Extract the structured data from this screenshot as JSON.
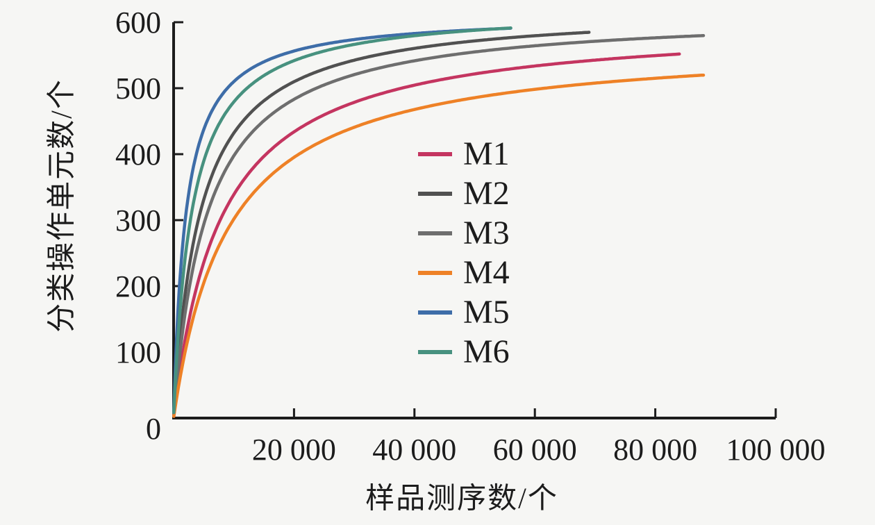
{
  "figure": {
    "background": "#f6f6f4",
    "axis_color": "#1c1c1c",
    "text_color": "#1c1c1c"
  },
  "chart_data": {
    "type": "line",
    "title": "",
    "xlabel": "样品测序数/个",
    "ylabel": "分类操作单元数/个",
    "xlim": [
      0,
      100000
    ],
    "ylim": [
      0,
      600
    ],
    "grid": false,
    "legend_position": "center-right",
    "x_ticks": [
      {
        "value": 20000,
        "label": "20 000"
      },
      {
        "value": 40000,
        "label": "40 000"
      },
      {
        "value": 60000,
        "label": "60 000"
      },
      {
        "value": 80000,
        "label": "80 000"
      },
      {
        "value": 100000,
        "label": "100 000"
      }
    ],
    "y_ticks": [
      {
        "value": 0,
        "label": "0"
      },
      {
        "value": 100,
        "label": "100"
      },
      {
        "value": 200,
        "label": "200"
      },
      {
        "value": 300,
        "label": "300"
      },
      {
        "value": 400,
        "label": "400"
      },
      {
        "value": 500,
        "label": "500"
      },
      {
        "value": 600,
        "label": "600"
      }
    ],
    "series": [
      {
        "name": "M1",
        "color": "#c43560",
        "x_end": 84000,
        "model": {
          "type": "saturating",
          "ymax": 603,
          "k": 7800
        },
        "points": [
          [
            0,
            0
          ],
          [
            2000,
            123
          ],
          [
            5000,
            236
          ],
          [
            10000,
            339
          ],
          [
            15000,
            397
          ],
          [
            20000,
            434
          ],
          [
            30000,
            479
          ],
          [
            40000,
            505
          ],
          [
            50000,
            522
          ],
          [
            60000,
            534
          ],
          [
            70000,
            543
          ],
          [
            84000,
            552
          ]
        ]
      },
      {
        "name": "M2",
        "color": "#515151",
        "x_end": 69000,
        "model": {
          "type": "saturating",
          "ymax": 622,
          "k": 4400
        },
        "points": [
          [
            0,
            0
          ],
          [
            2000,
            194
          ],
          [
            5000,
            331
          ],
          [
            10000,
            432
          ],
          [
            15000,
            481
          ],
          [
            20000,
            510
          ],
          [
            30000,
            542
          ],
          [
            40000,
            560
          ],
          [
            50000,
            572
          ],
          [
            60000,
            580
          ],
          [
            69000,
            584
          ]
        ]
      },
      {
        "name": "M3",
        "color": "#6e6e6e",
        "x_end": 88000,
        "model": {
          "type": "saturating",
          "ymax": 616,
          "k": 5500
        },
        "points": [
          [
            0,
            0
          ],
          [
            2000,
            164
          ],
          [
            5000,
            293
          ],
          [
            10000,
            397
          ],
          [
            15000,
            451
          ],
          [
            20000,
            483
          ],
          [
            30000,
            521
          ],
          [
            40000,
            542
          ],
          [
            50000,
            555
          ],
          [
            60000,
            564
          ],
          [
            70000,
            571
          ],
          [
            80000,
            576
          ],
          [
            88000,
            579
          ]
        ]
      },
      {
        "name": "M4",
        "color": "#ee8126",
        "x_end": 88000,
        "model": {
          "type": "saturating",
          "ymax": 573,
          "k": 9000
        },
        "points": [
          [
            0,
            0
          ],
          [
            2000,
            104
          ],
          [
            5000,
            205
          ],
          [
            10000,
            302
          ],
          [
            15000,
            358
          ],
          [
            20000,
            395
          ],
          [
            30000,
            441
          ],
          [
            40000,
            468
          ],
          [
            50000,
            486
          ],
          [
            60000,
            498
          ],
          [
            70000,
            508
          ],
          [
            80000,
            515
          ],
          [
            88000,
            519
          ]
        ]
      },
      {
        "name": "M5",
        "color": "#3e6da8",
        "x_end": 56000,
        "model": {
          "type": "saturating",
          "ymax": 612,
          "k": 2000
        },
        "points": [
          [
            0,
            0
          ],
          [
            2000,
            306
          ],
          [
            5000,
            437
          ],
          [
            10000,
            510
          ],
          [
            15000,
            540
          ],
          [
            20000,
            556
          ],
          [
            30000,
            574
          ],
          [
            40000,
            583
          ],
          [
            50000,
            588
          ],
          [
            56000,
            591
          ]
        ]
      },
      {
        "name": "M6",
        "color": "#47917f",
        "x_end": 56000,
        "model": {
          "type": "saturating",
          "ymax": 623,
          "k": 3000
        },
        "points": [
          [
            0,
            0
          ],
          [
            2000,
            249
          ],
          [
            5000,
            389
          ],
          [
            10000,
            479
          ],
          [
            15000,
            519
          ],
          [
            20000,
            542
          ],
          [
            30000,
            566
          ],
          [
            40000,
            580
          ],
          [
            50000,
            588
          ],
          [
            56000,
            591
          ]
        ]
      }
    ]
  }
}
